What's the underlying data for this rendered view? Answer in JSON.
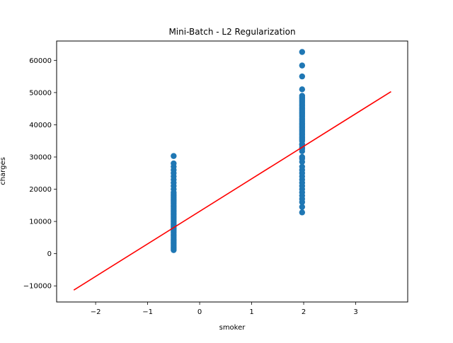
{
  "chart_data": {
    "type": "scatter",
    "title": "Mini-Batch - L2 Regularization",
    "xlabel": "smoker",
    "ylabel": "charges",
    "xlim": [
      -2.75,
      4.0
    ],
    "ylim": [
      -15000,
      66000
    ],
    "x_ticks": [
      -2,
      -1,
      0,
      1,
      2,
      3
    ],
    "y_ticks": [
      -10000,
      0,
      10000,
      20000,
      30000,
      40000,
      50000,
      60000
    ],
    "grid": false,
    "legend": "none",
    "colors": {
      "points": "#1f77b4",
      "line": "#ff0000"
    },
    "series": [
      {
        "kind": "scatter",
        "x": [
          -0.5,
          -0.5,
          -0.5,
          -0.5,
          -0.5,
          -0.5,
          -0.5,
          -0.5,
          -0.5,
          -0.5,
          -0.5,
          -0.5,
          -0.5,
          -0.5,
          -0.5,
          -0.5,
          -0.5,
          -0.5,
          -0.5,
          -0.5,
          -0.5,
          -0.5,
          -0.5,
          -0.5,
          -0.5,
          -0.5,
          -0.5,
          -0.5,
          -0.5,
          -0.5,
          -0.5,
          -0.5,
          -0.5,
          -0.5,
          -0.5,
          -0.5,
          -0.5,
          -0.5,
          -0.5,
          -0.5,
          -0.5,
          -0.5,
          -0.5,
          -0.5,
          -0.5,
          -0.5,
          -0.5,
          1.97,
          1.97,
          1.97,
          1.97,
          1.97,
          1.97,
          1.97,
          1.97,
          1.97,
          1.97,
          1.97,
          1.97,
          1.97,
          1.97,
          1.97,
          1.97,
          1.97,
          1.97,
          1.97,
          1.97,
          1.97,
          1.97,
          1.97,
          1.97,
          1.97,
          1.97,
          1.97,
          1.97,
          1.97,
          1.97,
          1.97,
          1.97,
          1.97,
          1.97,
          1.97,
          1.97,
          1.97,
          1.97,
          1.97,
          1.97,
          1.97,
          1.97,
          1.97,
          1.97,
          1.97,
          1.97,
          1.97,
          1.97,
          1.97,
          1.97,
          1.97,
          1.97,
          1.97,
          1.97,
          1.97
        ],
        "y": [
          1100,
          1600,
          2000,
          2500,
          3000,
          3500,
          4000,
          4500,
          5000,
          5500,
          6000,
          6500,
          7000,
          7500,
          8000,
          8500,
          9000,
          9500,
          10000,
          10500,
          11000,
          11500,
          12000,
          12500,
          13000,
          13500,
          14000,
          14500,
          15000,
          15500,
          16000,
          16500,
          17000,
          17500,
          18000,
          18500,
          19000,
          20000,
          21000,
          22000,
          23000,
          24000,
          25000,
          26000,
          27000,
          28000,
          30300,
          12800,
          14500,
          16000,
          17000,
          18000,
          19000,
          20000,
          21000,
          22000,
          23000,
          24000,
          25000,
          26000,
          27000,
          28500,
          29500,
          30000,
          33000,
          34000,
          35000,
          35500,
          36000,
          36500,
          37000,
          37500,
          38000,
          38500,
          39000,
          39500,
          40000,
          40500,
          41000,
          41500,
          42000,
          42500,
          43000,
          43500,
          44000,
          44500,
          45000,
          45500,
          46000,
          46500,
          47000,
          47500,
          48000,
          48500,
          49000,
          51000,
          55000,
          58400,
          62600,
          32500,
          31800,
          33800
        ]
      },
      {
        "kind": "line",
        "x": [
          -2.42,
          3.68
        ],
        "y": [
          -11300,
          50300
        ]
      }
    ]
  }
}
